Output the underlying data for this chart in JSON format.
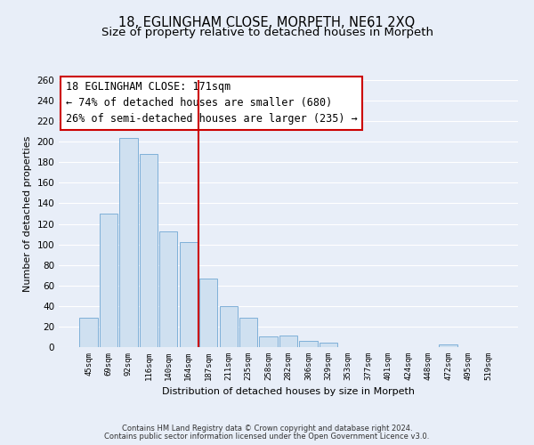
{
  "title": "18, EGLINGHAM CLOSE, MORPETH, NE61 2XQ",
  "subtitle": "Size of property relative to detached houses in Morpeth",
  "xlabel": "Distribution of detached houses by size in Morpeth",
  "ylabel": "Number of detached properties",
  "bar_labels": [
    "45sqm",
    "69sqm",
    "92sqm",
    "116sqm",
    "140sqm",
    "164sqm",
    "187sqm",
    "211sqm",
    "235sqm",
    "258sqm",
    "282sqm",
    "306sqm",
    "329sqm",
    "353sqm",
    "377sqm",
    "401sqm",
    "424sqm",
    "448sqm",
    "472sqm",
    "495sqm",
    "519sqm"
  ],
  "bar_values": [
    29,
    130,
    204,
    188,
    113,
    102,
    67,
    40,
    29,
    10,
    11,
    6,
    4,
    0,
    0,
    0,
    0,
    0,
    3,
    0,
    0
  ],
  "bar_color": "#cfe0f0",
  "bar_edge_color": "#7fb0d8",
  "vline_x": 6,
  "vline_color": "#cc0000",
  "ylim": [
    0,
    260
  ],
  "yticks": [
    0,
    20,
    40,
    60,
    80,
    100,
    120,
    140,
    160,
    180,
    200,
    220,
    240,
    260
  ],
  "annotation_title": "18 EGLINGHAM CLOSE: 171sqm",
  "annotation_line1": "← 74% of detached houses are smaller (680)",
  "annotation_line2": "26% of semi-detached houses are larger (235) →",
  "annotation_box_color": "#ffffff",
  "annotation_box_edge": "#cc0000",
  "footer_line1": "Contains HM Land Registry data © Crown copyright and database right 2024.",
  "footer_line2": "Contains public sector information licensed under the Open Government Licence v3.0.",
  "background_color": "#e8eef8",
  "grid_color": "#ffffff",
  "title_fontsize": 10.5,
  "subtitle_fontsize": 9.5,
  "annotation_fontsize": 8.5,
  "axis_fontsize": 8,
  "footer_fontsize": 6.0
}
